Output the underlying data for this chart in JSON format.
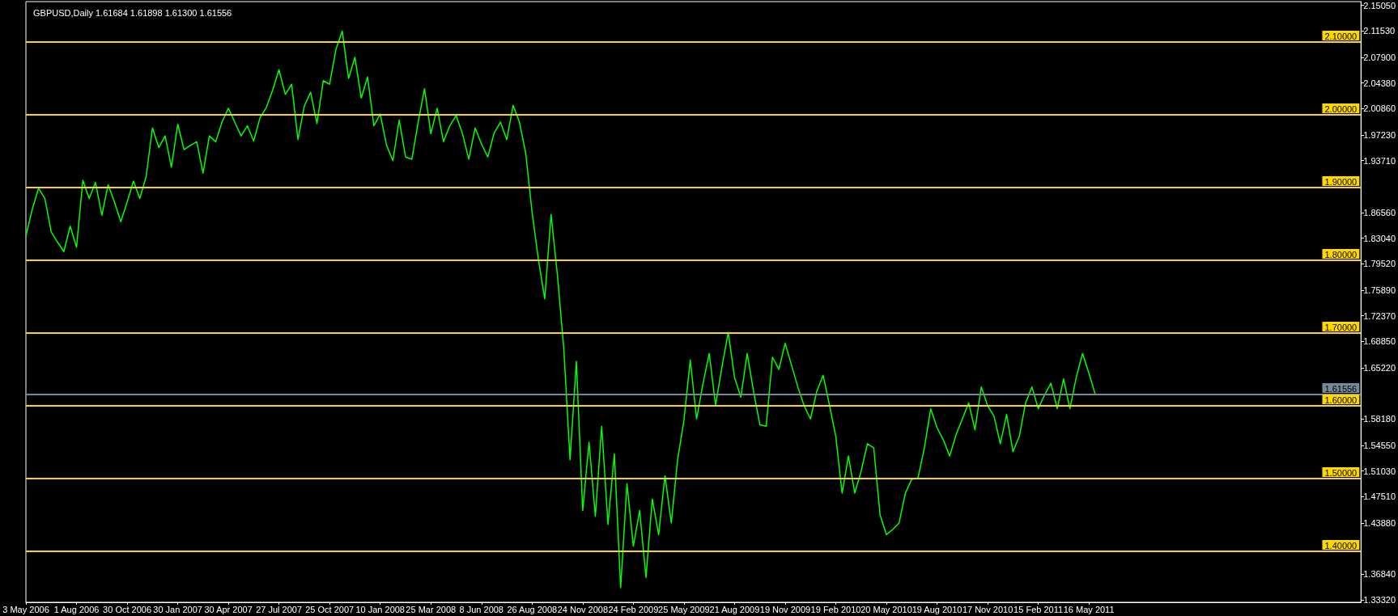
{
  "chart_data": {
    "type": "line",
    "title": "GBPUSD,Daily 1.61684 1.61898 1.61300 1.61556",
    "categories": [
      "3 May 2006",
      null,
      null,
      null,
      null,
      null,
      null,
      null,
      "1 Aug 2006",
      null,
      null,
      null,
      null,
      null,
      null,
      null,
      "30 Oct 2006",
      null,
      null,
      null,
      null,
      null,
      null,
      null,
      "30 Jan 2007",
      null,
      null,
      null,
      null,
      null,
      null,
      null,
      "30 Apr 2007",
      null,
      null,
      null,
      null,
      null,
      null,
      null,
      "27 Jul 2007",
      null,
      null,
      null,
      null,
      null,
      null,
      null,
      "25 Oct 2007",
      null,
      null,
      null,
      null,
      null,
      null,
      null,
      "10 Jan 2008",
      null,
      null,
      null,
      null,
      null,
      null,
      null,
      "25 Mar 2008",
      null,
      null,
      null,
      null,
      null,
      null,
      null,
      "8 Jun 2008",
      null,
      null,
      null,
      null,
      null,
      null,
      null,
      "26 Aug 2008",
      null,
      null,
      null,
      null,
      null,
      null,
      null,
      "24 Nov 2008",
      null,
      null,
      null,
      null,
      null,
      null,
      null,
      "24 Feb 2009",
      null,
      null,
      null,
      null,
      null,
      null,
      null,
      "25 May 2009",
      null,
      null,
      null,
      null,
      null,
      null,
      null,
      "21 Aug 2009",
      null,
      null,
      null,
      null,
      null,
      null,
      null,
      "19 Nov 2009",
      null,
      null,
      null,
      null,
      null,
      null,
      null,
      "19 Feb 2010",
      null,
      null,
      null,
      null,
      null,
      null,
      null,
      "20 May 2010",
      null,
      null,
      null,
      null,
      null,
      null,
      null,
      "19 Aug 2010",
      null,
      null,
      null,
      null,
      null,
      null,
      null,
      "17 Nov 2010",
      null,
      null,
      null,
      null,
      null,
      null,
      null,
      "15 Feb 2011",
      null,
      null,
      null,
      null,
      null,
      null,
      null,
      "16 May 2011",
      null,
      null,
      null,
      null,
      null,
      null,
      null,
      null,
      null,
      null,
      null,
      null,
      null,
      null,
      null,
      null,
      null,
      null,
      null,
      null,
      null,
      null,
      null,
      null,
      null,
      null,
      null,
      null,
      null,
      null,
      null,
      null,
      null,
      null,
      null,
      null,
      null,
      null,
      null,
      null,
      null,
      null,
      null
    ],
    "series": [
      {
        "color": "#00ff00",
        "values": [
          1.833,
          1.87,
          1.899,
          1.885,
          1.839,
          1.825,
          1.812,
          1.847,
          1.818,
          1.91,
          1.885,
          1.907,
          1.862,
          1.904,
          1.88,
          1.853,
          1.88,
          1.909,
          1.885,
          1.915,
          1.982,
          1.955,
          1.971,
          1.928,
          1.987,
          1.952,
          1.958,
          1.963,
          1.92,
          1.971,
          1.963,
          1.99,
          2.009,
          1.99,
          1.971,
          1.985,
          1.964,
          1.996,
          2.01,
          2.034,
          2.062,
          2.028,
          2.042,
          1.966,
          2.012,
          2.031,
          1.988,
          2.047,
          2.042,
          2.09,
          2.115,
          2.05,
          2.079,
          2.023,
          2.052,
          1.985,
          2.001,
          1.958,
          1.937,
          1.993,
          1.942,
          1.939,
          1.99,
          2.036,
          1.974,
          2.009,
          1.963,
          1.985,
          1.999,
          1.974,
          1.939,
          1.982,
          1.96,
          1.942,
          1.975,
          1.99,
          1.966,
          2.013,
          1.99,
          1.947,
          1.866,
          1.801,
          1.747,
          1.863,
          1.78,
          1.68,
          1.526,
          1.661,
          1.456,
          1.55,
          1.448,
          1.572,
          1.437,
          1.534,
          1.35,
          1.493,
          1.407,
          1.456,
          1.364,
          1.472,
          1.423,
          1.504,
          1.439,
          1.526,
          1.58,
          1.663,
          1.582,
          1.63,
          1.672,
          1.601,
          1.653,
          1.701,
          1.639,
          1.612,
          1.672,
          1.62,
          1.574,
          1.572,
          1.667,
          1.65,
          1.686,
          1.656,
          1.626,
          1.6,
          1.582,
          1.62,
          1.642,
          1.601,
          1.558,
          1.48,
          1.531,
          1.48,
          1.51,
          1.548,
          1.542,
          1.45,
          1.423,
          1.43,
          1.439,
          1.48,
          1.499,
          1.501,
          1.542,
          1.596,
          1.57,
          1.553,
          1.531,
          1.56,
          1.582,
          1.604,
          1.567,
          1.626,
          1.6,
          1.586,
          1.548,
          1.588,
          1.537,
          1.558,
          1.604,
          1.626,
          1.596,
          1.615,
          1.631,
          1.596,
          1.637,
          1.596,
          1.639,
          1.672,
          1.645,
          1.616,
          null,
          null,
          null,
          null,
          null,
          null,
          null,
          null,
          null,
          null,
          null,
          null,
          null,
          null,
          null,
          null,
          null,
          null,
          null,
          null,
          null,
          null,
          null,
          null,
          null,
          null,
          null,
          null,
          null,
          null,
          null,
          null,
          null,
          null,
          null,
          null,
          null,
          null,
          null,
          null,
          null,
          null
        ]
      }
    ],
    "ylim": [
      1.33,
      2.1556
    ],
    "yticks": [
      {
        "value": 2.1505,
        "label": "2.15050"
      },
      {
        "value": 2.1153,
        "label": "2.11530"
      },
      {
        "value": 2.079,
        "label": "2.07900"
      },
      {
        "value": 2.0438,
        "label": "2.04380"
      },
      {
        "value": 2.0086,
        "label": "2.00860"
      },
      {
        "value": 1.9723,
        "label": "1.97230"
      },
      {
        "value": 1.9371,
        "label": "1.93710"
      },
      {
        "value": 1.8656,
        "label": "1.86560"
      },
      {
        "value": 1.8304,
        "label": "1.83040"
      },
      {
        "value": 1.7952,
        "label": "1.79520"
      },
      {
        "value": 1.7589,
        "label": "1.75890"
      },
      {
        "value": 1.7237,
        "label": "1.72370"
      },
      {
        "value": 1.6885,
        "label": "1.68850"
      },
      {
        "value": 1.6522,
        "label": "1.65220"
      },
      {
        "value": 1.5818,
        "label": "1.58180"
      },
      {
        "value": 1.5455,
        "label": "1.54550"
      },
      {
        "value": 1.5103,
        "label": "1.51030"
      },
      {
        "value": 1.4751,
        "label": "1.47510"
      },
      {
        "value": 1.4388,
        "label": "1.43880"
      },
      {
        "value": 1.3684,
        "label": "1.36840"
      },
      {
        "value": 1.3332,
        "label": "1.33320"
      }
    ],
    "ref_lines": [
      {
        "axis": "y",
        "value": 2.1,
        "label": "2.10000",
        "color": "#ffd700"
      },
      {
        "axis": "y",
        "value": 2.0,
        "label": "2.00000",
        "color": "#ffd700"
      },
      {
        "axis": "y",
        "value": 1.9,
        "label": "1.90000",
        "color": "#ffd700"
      },
      {
        "axis": "y",
        "value": 1.8,
        "label": "1.80000",
        "color": "#ffd700"
      },
      {
        "axis": "y",
        "value": 1.7,
        "label": "1.70000",
        "color": "#ffd700"
      },
      {
        "axis": "y",
        "value": 1.61556,
        "label": "1.61556",
        "color": "#778899"
      },
      {
        "axis": "y",
        "value": 1.6,
        "label": "1.60000",
        "color": "#ffd700"
      },
      {
        "axis": "y",
        "value": 1.5,
        "label": "1.50000",
        "color": "#ffd700"
      },
      {
        "axis": "y",
        "value": 1.4,
        "label": "1.40000",
        "color": "#ffd700"
      }
    ],
    "line_style": "solid"
  }
}
